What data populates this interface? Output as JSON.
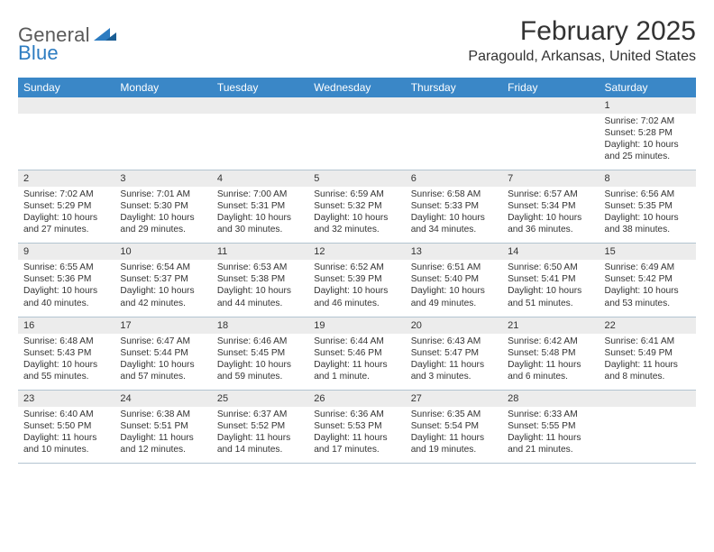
{
  "brand": {
    "text_general": "General",
    "text_blue": "Blue",
    "general_color": "#5a5a5a",
    "blue_color": "#2d7cc1"
  },
  "title": {
    "month": "February 2025",
    "location": "Paragould, Arkansas, United States",
    "title_fontsize": 30,
    "location_fontsize": 16
  },
  "calendar": {
    "header_bg": "#3a87c7",
    "header_fg": "#ffffff",
    "daynum_bg": "#ececec",
    "rule_color": "#b3c4d1",
    "body_fontsize": 10.2,
    "daynum_fontsize": 11,
    "header_fontsize": 12,
    "weekdays": [
      "Sunday",
      "Monday",
      "Tuesday",
      "Wednesday",
      "Thursday",
      "Friday",
      "Saturday"
    ],
    "weeks": [
      [
        null,
        null,
        null,
        null,
        null,
        null,
        {
          "n": "1",
          "sunrise": "7:02 AM",
          "sunset": "5:28 PM",
          "daylight": "10 hours and 25 minutes."
        }
      ],
      [
        {
          "n": "2",
          "sunrise": "7:02 AM",
          "sunset": "5:29 PM",
          "daylight": "10 hours and 27 minutes."
        },
        {
          "n": "3",
          "sunrise": "7:01 AM",
          "sunset": "5:30 PM",
          "daylight": "10 hours and 29 minutes."
        },
        {
          "n": "4",
          "sunrise": "7:00 AM",
          "sunset": "5:31 PM",
          "daylight": "10 hours and 30 minutes."
        },
        {
          "n": "5",
          "sunrise": "6:59 AM",
          "sunset": "5:32 PM",
          "daylight": "10 hours and 32 minutes."
        },
        {
          "n": "6",
          "sunrise": "6:58 AM",
          "sunset": "5:33 PM",
          "daylight": "10 hours and 34 minutes."
        },
        {
          "n": "7",
          "sunrise": "6:57 AM",
          "sunset": "5:34 PM",
          "daylight": "10 hours and 36 minutes."
        },
        {
          "n": "8",
          "sunrise": "6:56 AM",
          "sunset": "5:35 PM",
          "daylight": "10 hours and 38 minutes."
        }
      ],
      [
        {
          "n": "9",
          "sunrise": "6:55 AM",
          "sunset": "5:36 PM",
          "daylight": "10 hours and 40 minutes."
        },
        {
          "n": "10",
          "sunrise": "6:54 AM",
          "sunset": "5:37 PM",
          "daylight": "10 hours and 42 minutes."
        },
        {
          "n": "11",
          "sunrise": "6:53 AM",
          "sunset": "5:38 PM",
          "daylight": "10 hours and 44 minutes."
        },
        {
          "n": "12",
          "sunrise": "6:52 AM",
          "sunset": "5:39 PM",
          "daylight": "10 hours and 46 minutes."
        },
        {
          "n": "13",
          "sunrise": "6:51 AM",
          "sunset": "5:40 PM",
          "daylight": "10 hours and 49 minutes."
        },
        {
          "n": "14",
          "sunrise": "6:50 AM",
          "sunset": "5:41 PM",
          "daylight": "10 hours and 51 minutes."
        },
        {
          "n": "15",
          "sunrise": "6:49 AM",
          "sunset": "5:42 PM",
          "daylight": "10 hours and 53 minutes."
        }
      ],
      [
        {
          "n": "16",
          "sunrise": "6:48 AM",
          "sunset": "5:43 PM",
          "daylight": "10 hours and 55 minutes."
        },
        {
          "n": "17",
          "sunrise": "6:47 AM",
          "sunset": "5:44 PM",
          "daylight": "10 hours and 57 minutes."
        },
        {
          "n": "18",
          "sunrise": "6:46 AM",
          "sunset": "5:45 PM",
          "daylight": "10 hours and 59 minutes."
        },
        {
          "n": "19",
          "sunrise": "6:44 AM",
          "sunset": "5:46 PM",
          "daylight": "11 hours and 1 minute."
        },
        {
          "n": "20",
          "sunrise": "6:43 AM",
          "sunset": "5:47 PM",
          "daylight": "11 hours and 3 minutes."
        },
        {
          "n": "21",
          "sunrise": "6:42 AM",
          "sunset": "5:48 PM",
          "daylight": "11 hours and 6 minutes."
        },
        {
          "n": "22",
          "sunrise": "6:41 AM",
          "sunset": "5:49 PM",
          "daylight": "11 hours and 8 minutes."
        }
      ],
      [
        {
          "n": "23",
          "sunrise": "6:40 AM",
          "sunset": "5:50 PM",
          "daylight": "11 hours and 10 minutes."
        },
        {
          "n": "24",
          "sunrise": "6:38 AM",
          "sunset": "5:51 PM",
          "daylight": "11 hours and 12 minutes."
        },
        {
          "n": "25",
          "sunrise": "6:37 AM",
          "sunset": "5:52 PM",
          "daylight": "11 hours and 14 minutes."
        },
        {
          "n": "26",
          "sunrise": "6:36 AM",
          "sunset": "5:53 PM",
          "daylight": "11 hours and 17 minutes."
        },
        {
          "n": "27",
          "sunrise": "6:35 AM",
          "sunset": "5:54 PM",
          "daylight": "11 hours and 19 minutes."
        },
        {
          "n": "28",
          "sunrise": "6:33 AM",
          "sunset": "5:55 PM",
          "daylight": "11 hours and 21 minutes."
        },
        null
      ]
    ],
    "labels": {
      "sunrise": "Sunrise:",
      "sunset": "Sunset:",
      "daylight": "Daylight:"
    }
  }
}
